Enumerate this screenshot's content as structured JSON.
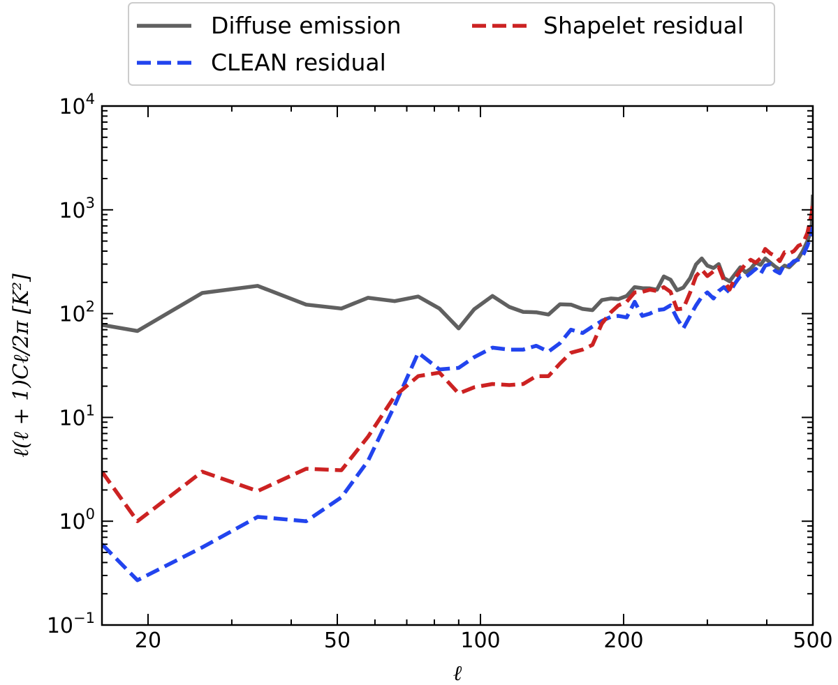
{
  "chart_data": {
    "type": "line",
    "xscale": "log",
    "yscale": "log",
    "xlim": [
      16,
      500
    ],
    "ylim": [
      0.1,
      10000
    ],
    "xlabel": "ℓ",
    "ylabel": "ℓ(ℓ + 1)Cℓ/2π [K²]",
    "legend": "top-outside-center",
    "grid": false,
    "xticks": [
      {
        "value": 20,
        "label": "20"
      },
      {
        "value": 50,
        "label": "50"
      },
      {
        "value": 100,
        "label": "100"
      },
      {
        "value": 200,
        "label": "200"
      },
      {
        "value": 500,
        "label": "500"
      }
    ],
    "yticks": [
      {
        "value": 0.1,
        "base": "10",
        "exp": "−1"
      },
      {
        "value": 1,
        "base": "10",
        "exp": "0"
      },
      {
        "value": 10,
        "base": "10",
        "exp": "1"
      },
      {
        "value": 100,
        "base": "10",
        "exp": "2"
      },
      {
        "value": 1000,
        "base": "10",
        "exp": "3"
      },
      {
        "value": 10000,
        "base": "10",
        "exp": "4"
      }
    ],
    "series": [
      {
        "name": "Diffuse emission",
        "color": "#606060",
        "style": "solid",
        "x": [
          16,
          19,
          26,
          34,
          43,
          51,
          58,
          66,
          74,
          82,
          90,
          97,
          106,
          115,
          123,
          131,
          139,
          147,
          155,
          164,
          172,
          180,
          188,
          195,
          203,
          211,
          219,
          227,
          235,
          243,
          251,
          259,
          267,
          276,
          284,
          292,
          300,
          309,
          317,
          325,
          334,
          343,
          352,
          361,
          370,
          379,
          388,
          397,
          407,
          416,
          426,
          436,
          446,
          456,
          466,
          476,
          487,
          497,
          500
        ],
        "y": [
          78,
          68,
          158,
          185,
          122,
          112,
          142,
          132,
          146,
          112,
          72,
          110,
          148,
          116,
          104,
          103,
          98,
          123,
          122,
          111,
          108,
          135,
          140,
          138,
          148,
          180,
          176,
          175,
          170,
          228,
          212,
          168,
          178,
          220,
          298,
          340,
          290,
          275,
          300,
          220,
          205,
          240,
          280,
          250,
          270,
          310,
          295,
          340,
          310,
          285,
          265,
          290,
          280,
          310,
          340,
          400,
          500,
          650,
          1400
        ]
      },
      {
        "name": "Shapelet residual",
        "color": "#cc2222",
        "style": "dashed",
        "x": [
          16,
          19,
          26,
          34,
          43,
          51,
          58,
          66,
          74,
          82,
          90,
          97,
          106,
          115,
          123,
          131,
          139,
          147,
          155,
          164,
          172,
          180,
          188,
          195,
          203,
          211,
          219,
          227,
          235,
          243,
          251,
          259,
          267,
          276,
          284,
          292,
          300,
          309,
          317,
          325,
          334,
          343,
          352,
          361,
          370,
          379,
          388,
          397,
          407,
          416,
          426,
          436,
          446,
          456,
          466,
          476,
          487,
          497,
          500
        ],
        "y": [
          3.0,
          1.0,
          3.0,
          1.95,
          3.2,
          3.1,
          6.5,
          16,
          25,
          27,
          17,
          19.5,
          21,
          20.5,
          21,
          25,
          25,
          33,
          42,
          45,
          50,
          80,
          103,
          120,
          130,
          160,
          162,
          170,
          165,
          180,
          162,
          110,
          112,
          160,
          230,
          265,
          230,
          255,
          280,
          210,
          170,
          220,
          260,
          300,
          330,
          310,
          340,
          420,
          380,
          360,
          320,
          390,
          380,
          400,
          450,
          470,
          600,
          900,
          1200
        ]
      },
      {
        "name": "CLEAN residual",
        "color": "#2244ee",
        "style": "dashed",
        "x": [
          16,
          19,
          26,
          34,
          43,
          51,
          58,
          66,
          74,
          82,
          90,
          97,
          106,
          115,
          123,
          131,
          139,
          147,
          155,
          164,
          172,
          180,
          188,
          195,
          203,
          211,
          219,
          227,
          235,
          243,
          251,
          259,
          267,
          276,
          284,
          292,
          300,
          309,
          317,
          325,
          334,
          343,
          352,
          361,
          370,
          379,
          388,
          397,
          407,
          416,
          426,
          436,
          446,
          456,
          466,
          476,
          487,
          497,
          500
        ],
        "y": [
          0.6,
          0.27,
          0.56,
          1.1,
          1.0,
          1.7,
          3.8,
          13,
          42,
          29,
          30,
          38,
          47,
          45,
          45,
          49,
          43,
          52,
          70,
          65,
          75,
          85,
          93,
          95,
          92,
          130,
          95,
          100,
          108,
          110,
          120,
          90,
          72,
          95,
          120,
          145,
          160,
          140,
          165,
          180,
          160,
          195,
          230,
          225,
          245,
          270,
          240,
          290,
          300,
          260,
          245,
          300,
          290,
          320,
          330,
          360,
          450,
          600,
          700
        ]
      }
    ]
  }
}
